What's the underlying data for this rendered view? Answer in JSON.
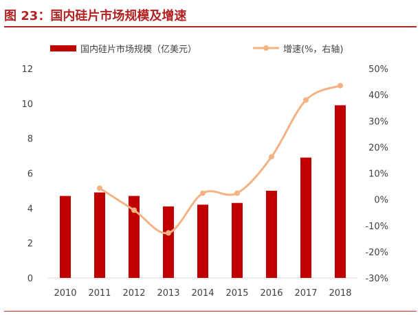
{
  "figure": {
    "title": "图 23：国内硅片市场规模及增速"
  },
  "colors": {
    "accent": "#b22222",
    "bar": "#c00000",
    "line": "#f4b183",
    "axis": "#d9d9d9",
    "text": "#404040"
  },
  "chart_data": {
    "type": "bar",
    "categories": [
      "2010",
      "2011",
      "2012",
      "2013",
      "2014",
      "2015",
      "2016",
      "2017",
      "2018"
    ],
    "series": [
      {
        "name": "国内硅片市场规模（亿美元）",
        "type": "bar",
        "axis": "left",
        "values": [
          4.7,
          4.9,
          4.7,
          4.1,
          4.2,
          4.3,
          5.0,
          6.9,
          9.9
        ]
      },
      {
        "name": "增速(%，右轴)",
        "type": "line",
        "axis": "right",
        "values": [
          null,
          4.3,
          -4.1,
          -12.8,
          2.4,
          2.4,
          16.3,
          38.0,
          43.5
        ]
      }
    ],
    "left_axis": {
      "ylim": [
        0,
        12
      ],
      "ticks": [
        "0",
        "2",
        "4",
        "6",
        "8",
        "10",
        "12"
      ]
    },
    "right_axis": {
      "ylim": [
        -30,
        50
      ],
      "ticks": [
        "-30%",
        "-20%",
        "-10%",
        "0%",
        "10%",
        "20%",
        "30%",
        "40%",
        "50%"
      ]
    },
    "grid": false,
    "legend_position": "top"
  }
}
